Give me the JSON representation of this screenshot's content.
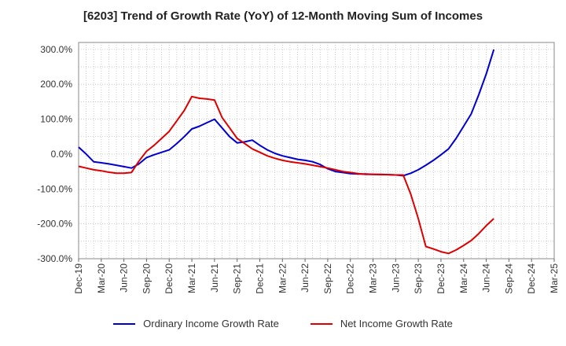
{
  "chart_data": {
    "type": "line",
    "title": "[6203]  Trend of Growth Rate (YoY) of 12-Month Moving Sum of Incomes",
    "xlabel": "",
    "ylabel": "",
    "ylim": [
      -300,
      320
    ],
    "y_ticks": [
      300,
      200,
      100,
      0,
      -100,
      -200,
      -300
    ],
    "y_tick_labels": [
      "300.0%",
      "200.0%",
      "100.0%",
      "0.0%",
      "-100.0%",
      "-200.0%",
      "-300.0%"
    ],
    "x_tick_labels": [
      "Dec-19",
      "Mar-20",
      "Jun-20",
      "Sep-20",
      "Dec-20",
      "Mar-21",
      "Jun-21",
      "Sep-21",
      "Dec-21",
      "Mar-22",
      "Jun-22",
      "Sep-22",
      "Dec-22",
      "Mar-23",
      "Jun-23",
      "Sep-23",
      "Dec-23",
      "Mar-24",
      "Jun-24",
      "Sep-24",
      "Dec-24",
      "Mar-25"
    ],
    "months": 63,
    "grid": true,
    "series": [
      {
        "name": "Ordinary Income Growth Rate",
        "color": "#0000cc",
        "values": [
          20,
          0,
          -22,
          -25,
          -28,
          -32,
          -36,
          -40,
          -28,
          -10,
          -2,
          5,
          12,
          30,
          50,
          72,
          80,
          90,
          100,
          75,
          50,
          32,
          35,
          40,
          25,
          12,
          2,
          -5,
          -10,
          -15,
          -18,
          -22,
          -30,
          -42,
          -50,
          -53,
          -56,
          -57,
          -57,
          -58,
          -58,
          -59,
          -60,
          -62,
          -55,
          -45,
          -32,
          -18,
          -2,
          15,
          45,
          80,
          115,
          170,
          230,
          300
        ]
      },
      {
        "name": "Net Income Growth Rate",
        "color": "#dd0000",
        "values": [
          -35,
          -40,
          -45,
          -48,
          -52,
          -55,
          -55,
          -53,
          -20,
          8,
          25,
          45,
          65,
          95,
          125,
          165,
          160,
          158,
          155,
          105,
          75,
          45,
          30,
          15,
          5,
          -5,
          -12,
          -18,
          -22,
          -25,
          -28,
          -32,
          -36,
          -40,
          -45,
          -50,
          -53,
          -56,
          -58,
          -58,
          -59,
          -59,
          -60,
          -60,
          -115,
          -185,
          -265,
          -272,
          -280,
          -285,
          -275,
          -262,
          -248,
          -228,
          -205,
          -185
        ]
      }
    ]
  }
}
